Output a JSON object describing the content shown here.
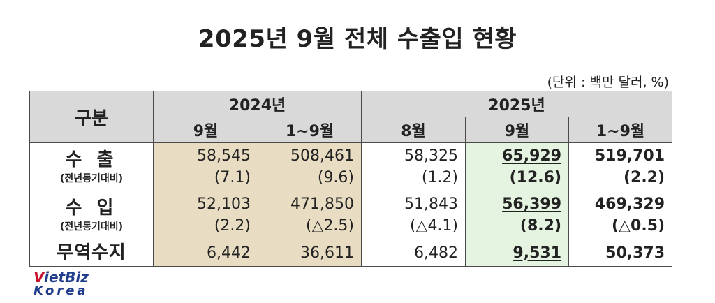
{
  "title": "2025년 9월 전체 수출입 현황",
  "unit": "(단위 : 백만 달러, %)",
  "table": {
    "header": {
      "category": "구분",
      "group_2024": "2024년",
      "group_2025": "2025년",
      "col_2024_sep": "9월",
      "col_2024_ytd": "1~9월",
      "col_2025_aug": "8월",
      "col_2025_sep": "9월",
      "col_2025_ytd": "1~9월"
    },
    "rows": {
      "export": {
        "label": "수 출",
        "sublabel": "(전년동기대비)",
        "values": [
          "58,545",
          "508,461",
          "58,325",
          "65,929",
          "519,701"
        ],
        "changes": [
          "(7.1)",
          "(9.6)",
          "(1.2)",
          "(12.6)",
          "(2.2)"
        ]
      },
      "import": {
        "label": "수 입",
        "sublabel": "(전년동기대비)",
        "values": [
          "52,103",
          "471,850",
          "51,843",
          "56,399",
          "469,329"
        ],
        "changes": [
          "(2.2)",
          "(△2.5)",
          "(△4.1)",
          "(8.2)",
          "(△0.5)"
        ]
      },
      "balance": {
        "label": "무역수지",
        "values": [
          "6,442",
          "36,611",
          "6,482",
          "9,531",
          "50,373"
        ]
      }
    }
  },
  "logo": {
    "v": "V",
    "rest": "ietBiz",
    "line2": "Korea"
  },
  "colors": {
    "header_bg": "#d9d9d9",
    "col_2024_bg": "#e8dcc2",
    "col_2025_highlight_bg": "#e5f3e1",
    "logo_red": "#c8102e",
    "logo_blue": "#1f3d8a"
  }
}
